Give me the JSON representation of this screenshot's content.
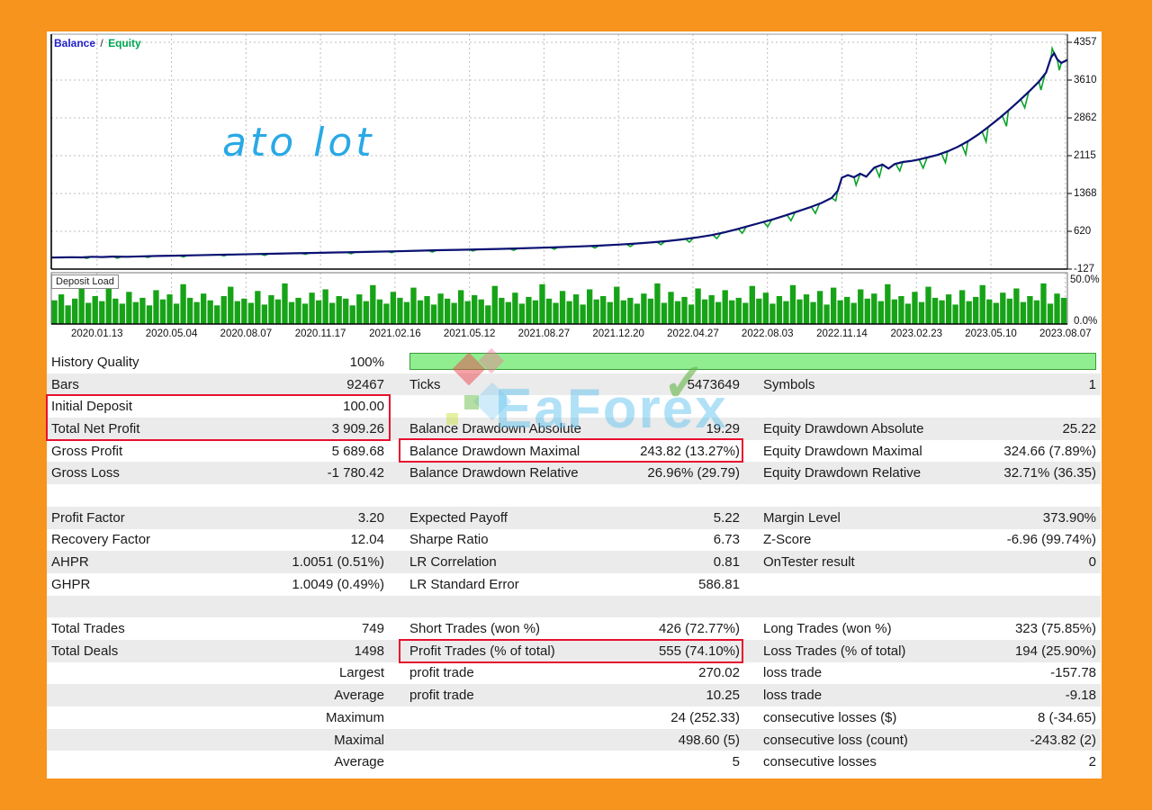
{
  "colors": {
    "page_border": "#f7941e",
    "panel_bg": "#ffffff",
    "balance_line": "#0a1172",
    "equity_line": "#0ba32b",
    "deposit_bar": "#17a317",
    "quality_bar": "#90ee90",
    "highlight_box": "#e8112d",
    "legend_balance": "#2222cc",
    "legend_equity": "#00a651",
    "chart_watermark": "#2aa9e6"
  },
  "chart": {
    "legend": {
      "balance_label": "Balance",
      "separator": "/",
      "equity_label": "Equity"
    },
    "watermark_text": "ato lot"
  },
  "deposit": {
    "label": "Deposit Load",
    "top_label": "50.0%",
    "bottom_label": "0.0%"
  },
  "brand": {
    "text": "EaForex",
    "check": "✓"
  },
  "chart_data": [
    {
      "type": "line",
      "title": "Balance / Equity",
      "ylim": [
        -127,
        4357
      ],
      "y_ticks": [
        4357,
        3610,
        2862,
        2115,
        1368,
        620,
        -127
      ],
      "x_tick_labels": [
        "2020.01.13",
        "2020.05.04",
        "2020.08.07",
        "2020.11.17",
        "2021.02.16",
        "2021.05.12",
        "2021.08.27",
        "2021.12.20",
        "2022.04.27",
        "2022.08.03",
        "2022.11.14",
        "2023.02.23",
        "2023.05.10",
        "2023.08.07"
      ],
      "grid": "dotted",
      "series": [
        {
          "name": "Balance",
          "points": [
            [
              0.0,
              100
            ],
            [
              0.01,
              104
            ],
            [
              0.02,
              108
            ],
            [
              0.03,
              104
            ],
            [
              0.04,
              116
            ],
            [
              0.05,
              112
            ],
            [
              0.06,
              120
            ],
            [
              0.075,
              116
            ],
            [
              0.09,
              126
            ],
            [
              0.105,
              132
            ],
            [
              0.12,
              138
            ],
            [
              0.14,
              146
            ],
            [
              0.16,
              154
            ],
            [
              0.18,
              162
            ],
            [
              0.2,
              170
            ],
            [
              0.22,
              178
            ],
            [
              0.24,
              186
            ],
            [
              0.26,
              194
            ],
            [
              0.28,
              202
            ],
            [
              0.3,
              210
            ],
            [
              0.32,
              218
            ],
            [
              0.34,
              226
            ],
            [
              0.36,
              236
            ],
            [
              0.38,
              246
            ],
            [
              0.4,
              254
            ],
            [
              0.42,
              262
            ],
            [
              0.44,
              272
            ],
            [
              0.46,
              282
            ],
            [
              0.48,
              294
            ],
            [
              0.5,
              308
            ],
            [
              0.52,
              322
            ],
            [
              0.54,
              338
            ],
            [
              0.56,
              358
            ],
            [
              0.575,
              378
            ],
            [
              0.59,
              400
            ],
            [
              0.605,
              424
            ],
            [
              0.62,
              458
            ],
            [
              0.635,
              498
            ],
            [
              0.65,
              545
            ],
            [
              0.662,
              598
            ],
            [
              0.674,
              658
            ],
            [
              0.686,
              724
            ],
            [
              0.698,
              790
            ],
            [
              0.71,
              856
            ],
            [
              0.722,
              930
            ],
            [
              0.734,
              1010
            ],
            [
              0.746,
              1090
            ],
            [
              0.758,
              1180
            ],
            [
              0.768,
              1280
            ],
            [
              0.774,
              1420
            ],
            [
              0.778,
              1680
            ],
            [
              0.784,
              1730
            ],
            [
              0.79,
              1690
            ],
            [
              0.796,
              1760
            ],
            [
              0.802,
              1700
            ],
            [
              0.81,
              1880
            ],
            [
              0.818,
              1940
            ],
            [
              0.824,
              1860
            ],
            [
              0.83,
              1950
            ],
            [
              0.838,
              1990
            ],
            [
              0.846,
              2010
            ],
            [
              0.854,
              2040
            ],
            [
              0.862,
              2080
            ],
            [
              0.872,
              2130
            ],
            [
              0.882,
              2200
            ],
            [
              0.892,
              2290
            ],
            [
              0.902,
              2400
            ],
            [
              0.912,
              2530
            ],
            [
              0.922,
              2680
            ],
            [
              0.932,
              2840
            ],
            [
              0.942,
              3010
            ],
            [
              0.952,
              3190
            ],
            [
              0.962,
              3380
            ],
            [
              0.972,
              3580
            ],
            [
              0.979,
              3760
            ],
            [
              0.984,
              4060
            ],
            [
              0.987,
              4140
            ],
            [
              0.99,
              4020
            ],
            [
              0.994,
              3950
            ],
            [
              1.0,
              4010
            ]
          ]
        },
        {
          "name": "Equity",
          "dips": [
            [
              0.035,
              -26
            ],
            [
              0.065,
              -30
            ],
            [
              0.095,
              -24
            ],
            [
              0.13,
              -28
            ],
            [
              0.17,
              -24
            ],
            [
              0.21,
              -30
            ],
            [
              0.25,
              -26
            ],
            [
              0.295,
              -30
            ],
            [
              0.335,
              -26
            ],
            [
              0.375,
              -32
            ],
            [
              0.415,
              -28
            ],
            [
              0.455,
              -34
            ],
            [
              0.495,
              -38
            ],
            [
              0.535,
              -44
            ],
            [
              0.57,
              -52
            ],
            [
              0.6,
              -60
            ],
            [
              0.628,
              -72
            ],
            [
              0.655,
              -90
            ],
            [
              0.68,
              -110
            ],
            [
              0.705,
              -120
            ],
            [
              0.728,
              -140
            ],
            [
              0.752,
              -160
            ],
            [
              0.772,
              -150
            ],
            [
              0.792,
              -180
            ],
            [
              0.815,
              -220
            ],
            [
              0.835,
              -160
            ],
            [
              0.858,
              -190
            ],
            [
              0.88,
              -210
            ],
            [
              0.9,
              -240
            ],
            [
              0.92,
              -260
            ],
            [
              0.94,
              -280
            ],
            [
              0.958,
              -240
            ],
            [
              0.974,
              -220
            ],
            [
              0.985,
              150
            ],
            [
              0.992,
              -180
            ]
          ]
        }
      ]
    },
    {
      "type": "bar",
      "title": "Deposit Load",
      "ylim": [
        0,
        50
      ],
      "y_tick_labels": [
        "50.0%",
        "0.0%"
      ],
      "values": [
        28,
        35,
        22,
        30,
        42,
        25,
        33,
        27,
        45,
        30,
        24,
        38,
        26,
        31,
        22,
        40,
        29,
        35,
        24,
        47,
        31,
        26,
        36,
        28,
        22,
        33,
        44,
        27,
        30,
        25,
        39,
        23,
        34,
        29,
        48,
        26,
        31,
        24,
        37,
        28,
        41,
        25,
        33,
        30,
        22,
        35,
        27,
        46,
        29,
        24,
        38,
        31,
        26,
        43,
        28,
        33,
        23,
        36,
        30,
        25,
        40,
        27,
        34,
        29,
        22,
        45,
        31,
        26,
        37,
        24,
        32,
        28,
        47,
        30,
        25,
        39,
        27,
        35,
        23,
        41,
        29,
        33,
        26,
        44,
        28,
        31,
        24,
        36,
        30,
        48,
        25,
        38,
        27,
        32,
        23,
        42,
        29,
        34,
        26,
        40,
        28,
        31,
        25,
        45,
        30,
        37,
        24,
        33,
        27,
        46,
        29,
        35,
        26,
        39,
        23,
        43,
        28,
        32,
        25,
        41,
        30,
        36,
        27,
        47,
        29,
        33,
        24,
        38,
        26,
        44,
        31,
        28,
        35,
        23,
        40,
        27,
        32,
        46,
        29,
        25,
        37,
        30,
        42,
        26,
        33,
        28,
        48,
        24,
        36,
        31
      ]
    }
  ],
  "stats": {
    "quality_bar_percent": 100,
    "rows": [
      [
        "History Quality",
        "100%",
        "",
        "",
        "",
        ""
      ],
      [
        "Bars",
        "92467",
        "Ticks",
        "5473649",
        "Symbols",
        "1"
      ],
      [
        "Initial Deposit",
        "100.00",
        "",
        "",
        "",
        ""
      ],
      [
        "Total Net Profit",
        "3 909.26",
        "Balance Drawdown Absolute",
        "19.29",
        "Equity Drawdown Absolute",
        "25.22"
      ],
      [
        "Gross Profit",
        "5 689.68",
        "Balance Drawdown Maximal",
        "243.82 (13.27%)",
        "Equity Drawdown Maximal",
        "324.66 (7.89%)"
      ],
      [
        "Gross Loss",
        "-1 780.42",
        "Balance Drawdown Relative",
        "26.96% (29.79)",
        "Equity Drawdown Relative",
        "32.71% (36.35)"
      ],
      [
        "",
        "",
        "",
        "",
        "",
        ""
      ],
      [
        "Profit Factor",
        "3.20",
        "Expected Payoff",
        "5.22",
        "Margin Level",
        "373.90%"
      ],
      [
        "Recovery Factor",
        "12.04",
        "Sharpe Ratio",
        "6.73",
        "Z-Score",
        "-6.96 (99.74%)"
      ],
      [
        "AHPR",
        "1.0051 (0.51%)",
        "LR Correlation",
        "0.81",
        "OnTester result",
        "0"
      ],
      [
        "GHPR",
        "1.0049 (0.49%)",
        "LR Standard Error",
        "586.81",
        "",
        ""
      ],
      [
        "",
        "",
        "",
        "",
        "",
        ""
      ],
      [
        "Total Trades",
        "749",
        "Short Trades (won %)",
        "426 (72.77%)",
        "Long Trades (won %)",
        "323 (75.85%)"
      ],
      [
        "Total Deals",
        "1498",
        "Profit Trades (% of total)",
        "555 (74.10%)",
        "Loss Trades (% of total)",
        "194 (25.90%)"
      ],
      [
        "",
        "Largest",
        "profit trade",
        "270.02",
        "loss trade",
        "-157.78"
      ],
      [
        "",
        "Average",
        "profit trade",
        "10.25",
        "loss trade",
        "-9.18"
      ],
      [
        "",
        "Maximum",
        "",
        "24 (252.33)",
        "consecutive losses ($)",
        "8 (-34.65)"
      ],
      [
        "",
        "Maximal",
        "",
        "498.60 (5)",
        "consecutive loss (count)",
        "-243.82 (2)"
      ],
      [
        "",
        "Average",
        "",
        "5",
        "consecutive losses",
        "2"
      ]
    ],
    "highlighted": [
      "Initial Deposit / Total Net Profit",
      "Balance Drawdown Maximal",
      "Profit Trades (% of total)"
    ]
  }
}
